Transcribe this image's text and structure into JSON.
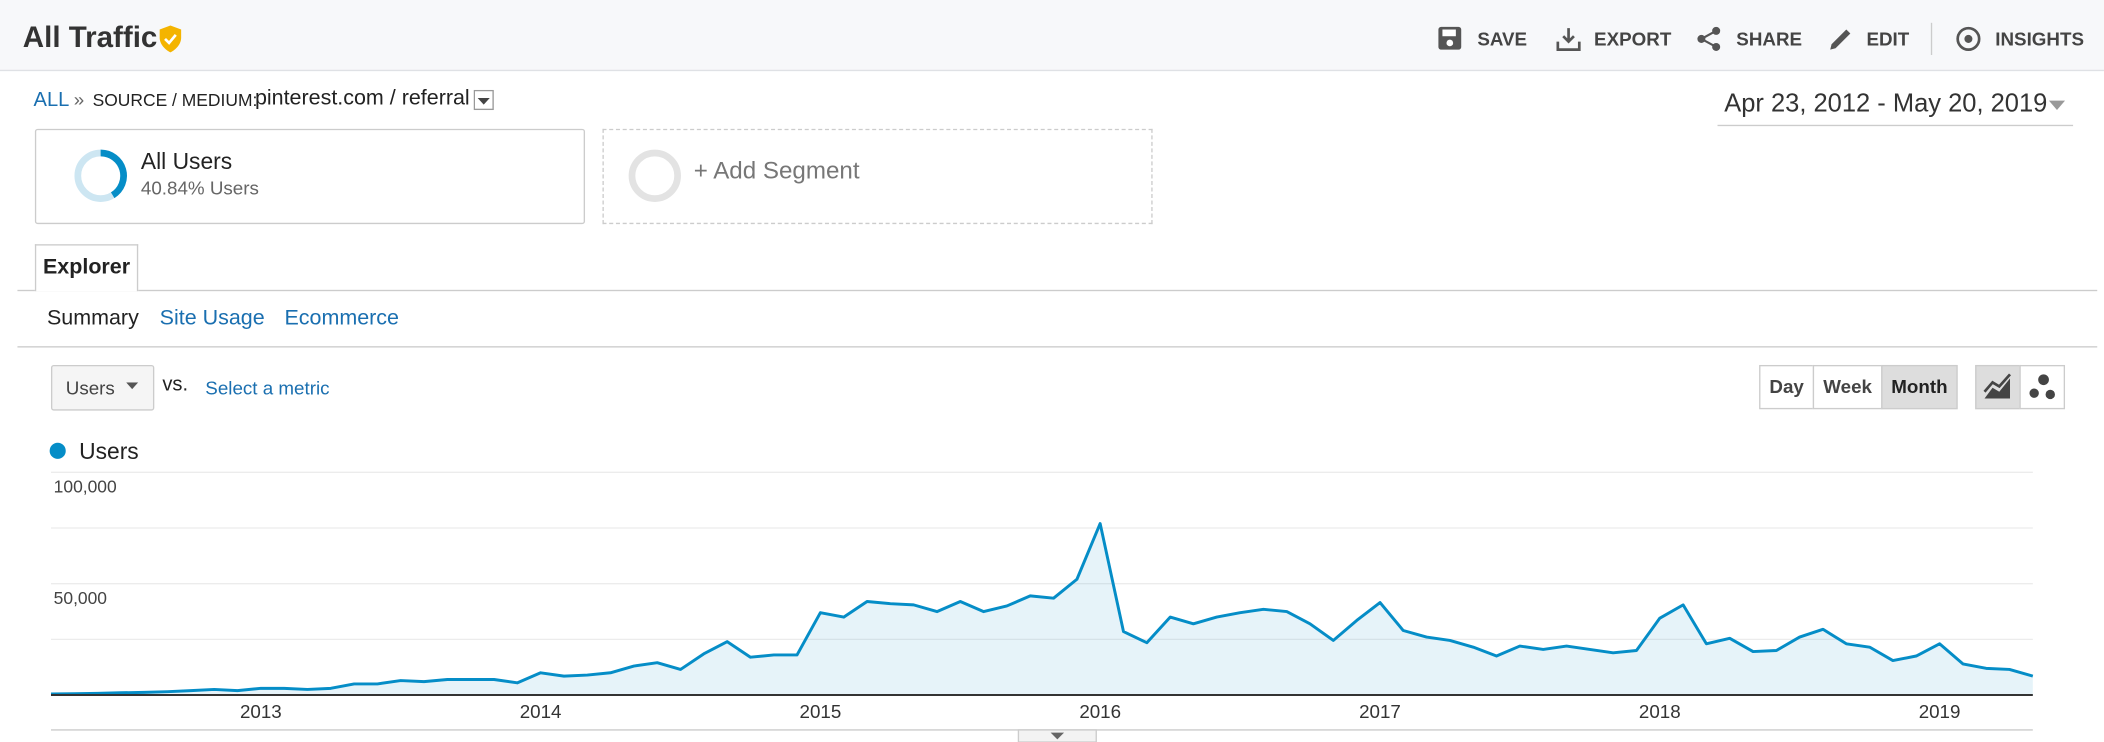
{
  "header": {
    "title": "All Traffic",
    "actions": [
      "SAVE",
      "EXPORT",
      "SHARE",
      "EDIT",
      "INSIGHTS"
    ]
  },
  "breadcrumb": {
    "root": "ALL",
    "separator": "»",
    "label": "SOURCE / MEDIUM:",
    "value": "pinterest.com / referral"
  },
  "date_range": "Apr 23, 2012 - May 20, 2019",
  "segments": [
    {
      "name": "All Users",
      "detail": "40.84% Users"
    },
    {
      "name": "+ Add Segment"
    }
  ],
  "tabs": [
    "Explorer"
  ],
  "subtabs": [
    "Summary",
    "Site Usage",
    "Ecommerce"
  ],
  "controls": {
    "metric": "Users",
    "vs": "vs.",
    "select": "Select a metric",
    "granularity": [
      "Day",
      "Week",
      "Month"
    ]
  },
  "chart_data": {
    "type": "line",
    "categories": [
      null,
      null,
      null,
      null,
      null,
      null,
      null,
      null,
      null,
      "2013",
      null,
      null,
      null,
      null,
      null,
      null,
      null,
      null,
      null,
      null,
      null,
      "2014",
      null,
      null,
      null,
      null,
      null,
      null,
      null,
      null,
      null,
      null,
      null,
      "2015",
      null,
      null,
      null,
      null,
      null,
      null,
      null,
      null,
      null,
      null,
      null,
      "2016",
      null,
      null,
      null,
      null,
      null,
      null,
      null,
      null,
      null,
      null,
      null,
      "2017",
      null,
      null,
      null,
      null,
      null,
      null,
      null,
      null,
      null,
      null,
      null,
      "2018",
      null,
      null,
      null,
      null,
      null,
      null,
      null,
      null,
      null,
      null,
      null,
      "2019",
      null,
      null,
      null,
      null
    ],
    "series": [
      {
        "name": "Users",
        "color": "#058dc7",
        "values": [
          500,
          600,
          800,
          1000,
          1200,
          1500,
          2000,
          2500,
          2000,
          3000,
          3000,
          2500,
          3000,
          5000,
          5000,
          6500,
          6000,
          7000,
          7000,
          7000,
          5500,
          10000,
          8500,
          9000,
          10000,
          13000,
          14500,
          11500,
          18500,
          24000,
          17000,
          18000,
          18000,
          37000,
          35000,
          42000,
          41000,
          40500,
          37500,
          42000,
          37500,
          40000,
          44500,
          43500,
          52000,
          77000,
          28500,
          23500,
          35000,
          32000,
          35000,
          37000,
          38500,
          37500,
          32000,
          24500,
          33500,
          41500,
          29000,
          26000,
          24500,
          21500,
          17500,
          22000,
          20500,
          22000,
          20500,
          19000,
          20000,
          34500,
          40500,
          23000,
          25500,
          19500,
          20000,
          26000,
          29500,
          23000,
          21500,
          15500,
          17500,
          23000,
          14000,
          12000,
          11500,
          8500
        ]
      }
    ],
    "ylim": [
      0,
      100000
    ],
    "yticks": [
      {
        "value": 100000,
        "label": "100,000"
      },
      {
        "value": 50000,
        "label": "50,000"
      }
    ],
    "ygrid": [
      0,
      25000,
      50000,
      75000,
      100000
    ]
  }
}
